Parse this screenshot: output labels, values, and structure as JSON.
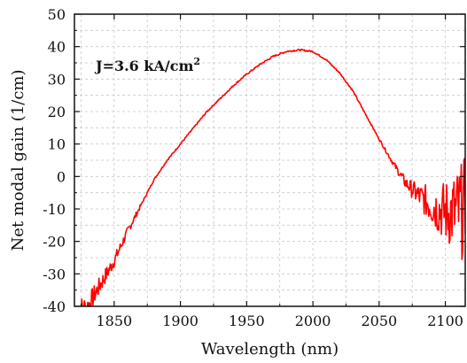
{
  "chart_data": {
    "type": "line",
    "xlabel": "Wavelength (nm)",
    "ylabel": "Net modal gain  (1/cm)",
    "xlim": [
      1820,
      2115
    ],
    "ylim": [
      -40,
      50
    ],
    "xticks": [
      1850,
      1900,
      1950,
      2000,
      2050,
      2100
    ],
    "yticks": [
      -40,
      -30,
      -20,
      -10,
      0,
      10,
      20,
      30,
      40,
      50
    ],
    "grid": true,
    "annotation": {
      "prefix": "J=3.6 kA/cm",
      "superscript": "2"
    },
    "colors": {
      "series": "#ff0000",
      "axes": "#111111",
      "grid": "#c8c8c8"
    },
    "series": [
      {
        "color": "#ff0000",
        "x": [
          1822,
          1830,
          1840,
          1850,
          1860,
          1870,
          1880,
          1890,
          1900,
          1910,
          1920,
          1930,
          1940,
          1950,
          1960,
          1970,
          1980,
          1990,
          2000,
          2010,
          2020,
          2030,
          2040,
          2050,
          2060,
          2070,
          2080,
          2090,
          2100,
          2110,
          2115
        ],
        "y": [
          -41,
          -40,
          -33,
          -26,
          -17,
          -9,
          -1,
          5,
          10,
          15,
          20,
          24,
          28,
          31.5,
          34.5,
          37,
          38.5,
          39,
          38.5,
          36,
          32,
          26.5,
          19,
          11.5,
          4.5,
          -2,
          -6,
          -9,
          -11,
          -11,
          -10
        ]
      }
    ]
  }
}
